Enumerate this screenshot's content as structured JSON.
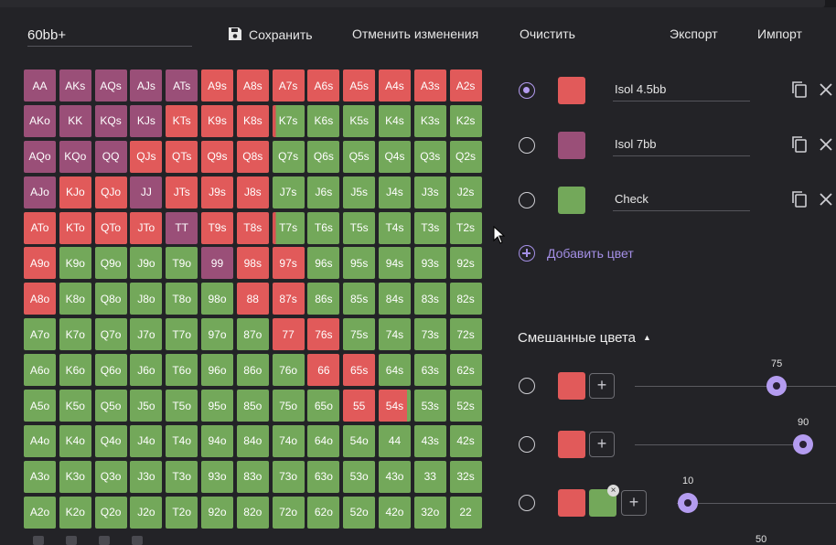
{
  "range_name": "60bb+",
  "toolbar": {
    "save_label": "Сохранить",
    "undo_label": "Отменить изменения",
    "clear_label": "Очистить",
    "export_label": "Экспорт",
    "import_label": "Импорт"
  },
  "colors": {
    "red": "#e15a5a",
    "purple": "#9a4f78",
    "green": "#73a85a",
    "accent": "#b49cf0",
    "background": "#232327"
  },
  "hand_grid": [
    [
      [
        "AA",
        "purple"
      ],
      [
        "AKs",
        "purple"
      ],
      [
        "AQs",
        "purple"
      ],
      [
        "AJs",
        "purple"
      ],
      [
        "ATs",
        "purple"
      ],
      [
        "A9s",
        "red"
      ],
      [
        "A8s",
        "red"
      ],
      [
        "A7s",
        "red"
      ],
      [
        "A6s",
        "red"
      ],
      [
        "A5s",
        "red"
      ],
      [
        "A4s",
        "red"
      ],
      [
        "A3s",
        "red"
      ],
      [
        "A2s",
        "red"
      ]
    ],
    [
      [
        "AKo",
        "purple"
      ],
      [
        "KK",
        "purple"
      ],
      [
        "KQs",
        "purple"
      ],
      [
        "KJs",
        "purple"
      ],
      [
        "KTs",
        "red"
      ],
      [
        "K9s",
        "red"
      ],
      [
        "K8s",
        "red"
      ],
      [
        "K7s",
        "split"
      ],
      [
        "K6s",
        "green"
      ],
      [
        "K5s",
        "green"
      ],
      [
        "K4s",
        "green"
      ],
      [
        "K3s",
        "green"
      ],
      [
        "K2s",
        "green"
      ]
    ],
    [
      [
        "AQo",
        "purple"
      ],
      [
        "KQo",
        "purple"
      ],
      [
        "QQ",
        "purple"
      ],
      [
        "QJs",
        "red"
      ],
      [
        "QTs",
        "red"
      ],
      [
        "Q9s",
        "red"
      ],
      [
        "Q8s",
        "red"
      ],
      [
        "Q7s",
        "green"
      ],
      [
        "Q6s",
        "green"
      ],
      [
        "Q5s",
        "green"
      ],
      [
        "Q4s",
        "green"
      ],
      [
        "Q3s",
        "green"
      ],
      [
        "Q2s",
        "green"
      ]
    ],
    [
      [
        "AJo",
        "purple"
      ],
      [
        "KJo",
        "red"
      ],
      [
        "QJo",
        "red"
      ],
      [
        "JJ",
        "purple"
      ],
      [
        "JTs",
        "red"
      ],
      [
        "J9s",
        "red"
      ],
      [
        "J8s",
        "red"
      ],
      [
        "J7s",
        "green"
      ],
      [
        "J6s",
        "green"
      ],
      [
        "J5s",
        "green"
      ],
      [
        "J4s",
        "green"
      ],
      [
        "J3s",
        "green"
      ],
      [
        "J2s",
        "green"
      ]
    ],
    [
      [
        "ATo",
        "red"
      ],
      [
        "KTo",
        "red"
      ],
      [
        "QTo",
        "red"
      ],
      [
        "JTo",
        "red"
      ],
      [
        "TT",
        "purple"
      ],
      [
        "T9s",
        "red"
      ],
      [
        "T8s",
        "red"
      ],
      [
        "T7s",
        "split"
      ],
      [
        "T6s",
        "green"
      ],
      [
        "T5s",
        "green"
      ],
      [
        "T4s",
        "green"
      ],
      [
        "T3s",
        "green"
      ],
      [
        "T2s",
        "green"
      ]
    ],
    [
      [
        "A9o",
        "red"
      ],
      [
        "K9o",
        "green"
      ],
      [
        "Q9o",
        "green"
      ],
      [
        "J9o",
        "green"
      ],
      [
        "T9o",
        "green"
      ],
      [
        "99",
        "purple"
      ],
      [
        "98s",
        "red"
      ],
      [
        "97s",
        "red"
      ],
      [
        "96s",
        "green"
      ],
      [
        "95s",
        "green"
      ],
      [
        "94s",
        "green"
      ],
      [
        "93s",
        "green"
      ],
      [
        "92s",
        "green"
      ]
    ],
    [
      [
        "A8o",
        "red"
      ],
      [
        "K8o",
        "green"
      ],
      [
        "Q8o",
        "green"
      ],
      [
        "J8o",
        "green"
      ],
      [
        "T8o",
        "green"
      ],
      [
        "98o",
        "green"
      ],
      [
        "88",
        "red"
      ],
      [
        "87s",
        "red"
      ],
      [
        "86s",
        "green"
      ],
      [
        "85s",
        "green"
      ],
      [
        "84s",
        "green"
      ],
      [
        "83s",
        "green"
      ],
      [
        "82s",
        "green"
      ]
    ],
    [
      [
        "A7o",
        "green"
      ],
      [
        "K7o",
        "green"
      ],
      [
        "Q7o",
        "green"
      ],
      [
        "J7o",
        "green"
      ],
      [
        "T7o",
        "green"
      ],
      [
        "97o",
        "green"
      ],
      [
        "87o",
        "green"
      ],
      [
        "77",
        "red"
      ],
      [
        "76s",
        "red"
      ],
      [
        "75s",
        "green"
      ],
      [
        "74s",
        "green"
      ],
      [
        "73s",
        "green"
      ],
      [
        "72s",
        "green"
      ]
    ],
    [
      [
        "A6o",
        "green"
      ],
      [
        "K6o",
        "green"
      ],
      [
        "Q6o",
        "green"
      ],
      [
        "J6o",
        "green"
      ],
      [
        "T6o",
        "green"
      ],
      [
        "96o",
        "green"
      ],
      [
        "86o",
        "green"
      ],
      [
        "76o",
        "green"
      ],
      [
        "66",
        "red"
      ],
      [
        "65s",
        "red"
      ],
      [
        "64s",
        "green"
      ],
      [
        "63s",
        "green"
      ],
      [
        "62s",
        "green"
      ]
    ],
    [
      [
        "A5o",
        "green"
      ],
      [
        "K5o",
        "green"
      ],
      [
        "Q5o",
        "green"
      ],
      [
        "J5o",
        "green"
      ],
      [
        "T5o",
        "green"
      ],
      [
        "95o",
        "green"
      ],
      [
        "85o",
        "green"
      ],
      [
        "75o",
        "green"
      ],
      [
        "65o",
        "green"
      ],
      [
        "55",
        "red"
      ],
      [
        "54s",
        "split-r"
      ],
      [
        "53s",
        "green"
      ],
      [
        "52s",
        "green"
      ]
    ],
    [
      [
        "A4o",
        "green"
      ],
      [
        "K4o",
        "green"
      ],
      [
        "Q4o",
        "green"
      ],
      [
        "J4o",
        "green"
      ],
      [
        "T4o",
        "green"
      ],
      [
        "94o",
        "green"
      ],
      [
        "84o",
        "green"
      ],
      [
        "74o",
        "green"
      ],
      [
        "64o",
        "green"
      ],
      [
        "54o",
        "green"
      ],
      [
        "44",
        "green"
      ],
      [
        "43s",
        "green"
      ],
      [
        "42s",
        "green"
      ]
    ],
    [
      [
        "A3o",
        "green"
      ],
      [
        "K3o",
        "green"
      ],
      [
        "Q3o",
        "green"
      ],
      [
        "J3o",
        "green"
      ],
      [
        "T3o",
        "green"
      ],
      [
        "93o",
        "green"
      ],
      [
        "83o",
        "green"
      ],
      [
        "73o",
        "green"
      ],
      [
        "63o",
        "green"
      ],
      [
        "53o",
        "green"
      ],
      [
        "43o",
        "green"
      ],
      [
        "33",
        "green"
      ],
      [
        "32s",
        "green"
      ]
    ],
    [
      [
        "A2o",
        "green"
      ],
      [
        "K2o",
        "green"
      ],
      [
        "Q2o",
        "green"
      ],
      [
        "J2o",
        "green"
      ],
      [
        "T2o",
        "green"
      ],
      [
        "92o",
        "green"
      ],
      [
        "82o",
        "green"
      ],
      [
        "72o",
        "green"
      ],
      [
        "62o",
        "green"
      ],
      [
        "52o",
        "green"
      ],
      [
        "42o",
        "green"
      ],
      [
        "32o",
        "green"
      ],
      [
        "22",
        "green"
      ]
    ]
  ],
  "color_list": [
    {
      "name": "Isol 4.5bb",
      "color": "#e15a5a",
      "selected": true
    },
    {
      "name": "Isol 7bb",
      "color": "#9a4f78",
      "selected": false
    },
    {
      "name": "Check",
      "color": "#73a85a",
      "selected": false
    }
  ],
  "add_color_label": "Добавить цвет",
  "mixed_title": "Смешанные цвета",
  "mixed": [
    {
      "value": "75"
    },
    {
      "value": "90"
    },
    {
      "value": "10"
    },
    {
      "value": "50"
    }
  ]
}
